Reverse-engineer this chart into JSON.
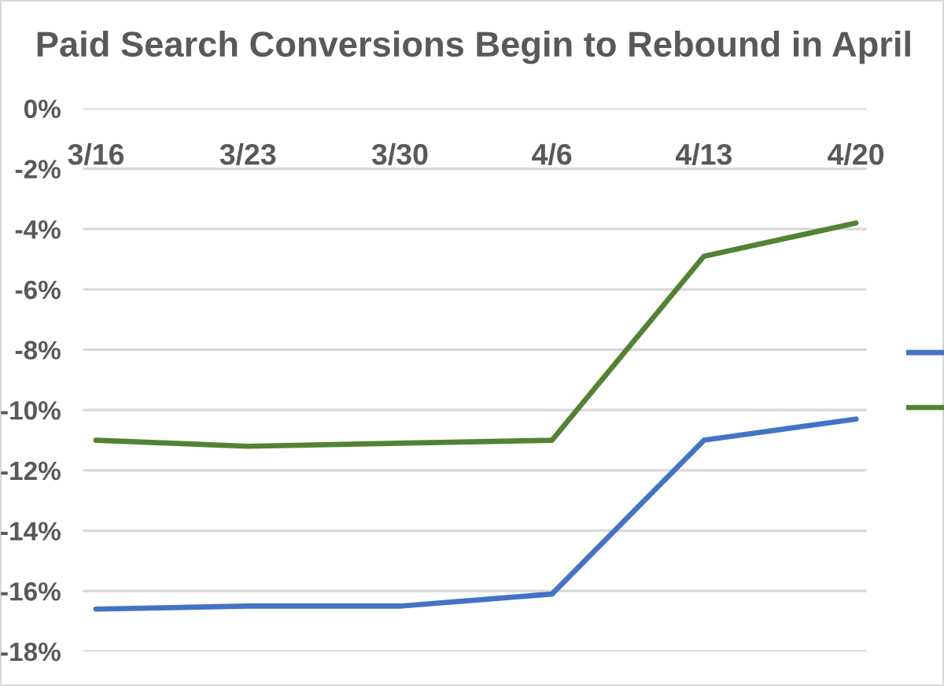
{
  "chart_data": {
    "type": "line",
    "title": "Paid Search Conversions Begin to Rebound in April",
    "categories": [
      "3/16",
      "3/23",
      "3/30",
      "4/6",
      "4/13",
      "4/20"
    ],
    "series": [
      {
        "color": "#4472c4",
        "values": [
          -16.6,
          -16.5,
          -16.5,
          -16.1,
          -11.0,
          -10.3
        ]
      },
      {
        "color": "#548235",
        "values": [
          -11.0,
          -11.2,
          -11.1,
          -11.0,
          -4.9,
          -3.8
        ]
      }
    ],
    "ylim": [
      -18,
      0
    ],
    "yticks": [
      {
        "value": 0,
        "label": "0%"
      },
      {
        "value": -2,
        "label": "-2%"
      },
      {
        "value": -4,
        "label": "-4%"
      },
      {
        "value": -6,
        "label": "-6%"
      },
      {
        "value": -8,
        "label": "-8%"
      },
      {
        "value": -10,
        "label": "-10%"
      },
      {
        "value": -12,
        "label": "-12%"
      },
      {
        "value": -14,
        "label": "-14%"
      },
      {
        "value": -16,
        "label": "-16%"
      },
      {
        "value": -18,
        "label": "-18%"
      }
    ],
    "grid": "y",
    "marker": "none",
    "line_style": "solid"
  }
}
